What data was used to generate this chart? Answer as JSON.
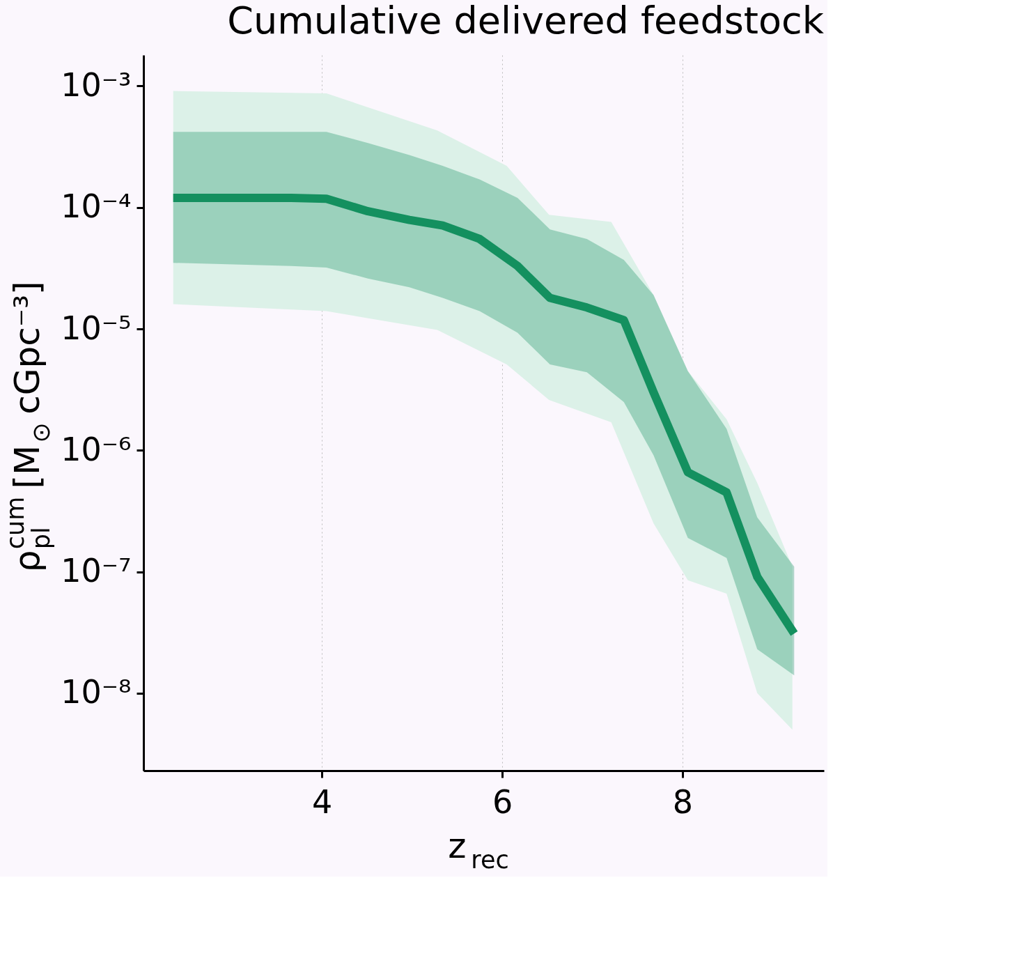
{
  "chart_data": {
    "type": "line",
    "title": "Cumulative delivered feedstock",
    "xlabel": "z$_{rec}$",
    "ylabel": "ρ$_{pl}$$^{cum}$ [M$_{⊙}$ cGpc⁻³]",
    "xlim": [
      2.02,
      9.57
    ],
    "xticks": [
      4,
      6,
      8
    ],
    "ylim": [
      2.3e-09,
      0.0018
    ],
    "log": "y",
    "yticks": [
      {
        "value": 1e-08,
        "label": "10⁻⁸"
      },
      {
        "value": 1e-07,
        "label": "10⁻⁷"
      },
      {
        "value": 1e-06,
        "label": "10⁻⁶"
      },
      {
        "value": 1e-05,
        "label": "10⁻⁵"
      },
      {
        "value": 0.0001,
        "label": "10⁻⁴"
      },
      {
        "value": 0.001,
        "label": "10⁻³"
      }
    ],
    "grid": "x",
    "series": [
      {
        "color": "#dcf1e8",
        "x": [
          2.35,
          4.05,
          5.28,
          6.05,
          6.52,
          7.21,
          7.68,
          8.06,
          8.49,
          8.83,
          9.22
        ],
        "values": [
          null,
          null,
          null,
          null,
          null,
          null,
          null,
          null,
          null,
          null,
          null
        ],
        "upper": [
          0.00091,
          0.00087,
          0.00043,
          0.00022,
          8.7e-05,
          7.6e-05,
          1.9e-05,
          4.5e-06,
          1.8e-06,
          5.4e-07,
          1.1e-07
        ],
        "lower": [
          1.6e-05,
          1.4e-05,
          9.8e-06,
          5.1e-06,
          2.6e-06,
          1.7e-06,
          2.5e-07,
          8.5e-08,
          6.6e-08,
          1e-08,
          5e-09
        ]
      },
      {
        "color": "#14905f",
        "x": [
          2.35,
          3.66,
          4.05,
          4.51,
          4.97,
          5.34,
          5.75,
          6.17,
          6.53,
          6.94,
          7.35,
          7.68,
          8.06,
          8.49,
          8.83,
          9.24
        ],
        "values": [
          0.00012,
          0.00012,
          0.000118,
          9.3e-05,
          7.9e-05,
          7.1e-05,
          5.5e-05,
          3.3e-05,
          1.8e-05,
          1.5e-05,
          1.18e-05,
          3e-06,
          6.6e-07,
          4.5e-07,
          9.1e-08,
          3.1e-08
        ],
        "upper": [
          0.00042,
          0.00042,
          0.00042,
          0.00034,
          0.00027,
          0.00022,
          0.00017,
          0.00012,
          6.6e-05,
          5.5e-05,
          3.7e-05,
          1.9e-05,
          4.5e-06,
          1.5e-06,
          2.8e-07,
          1.1e-07
        ],
        "lower": [
          3.5e-05,
          3.3e-05,
          3.2e-05,
          2.6e-05,
          2.2e-05,
          1.8e-05,
          1.4e-05,
          9.3e-06,
          5.1e-06,
          4.4e-06,
          2.5e-06,
          9.1e-07,
          1.9e-07,
          1.3e-07,
          2.3e-08,
          1.4e-08
        ]
      }
    ]
  }
}
